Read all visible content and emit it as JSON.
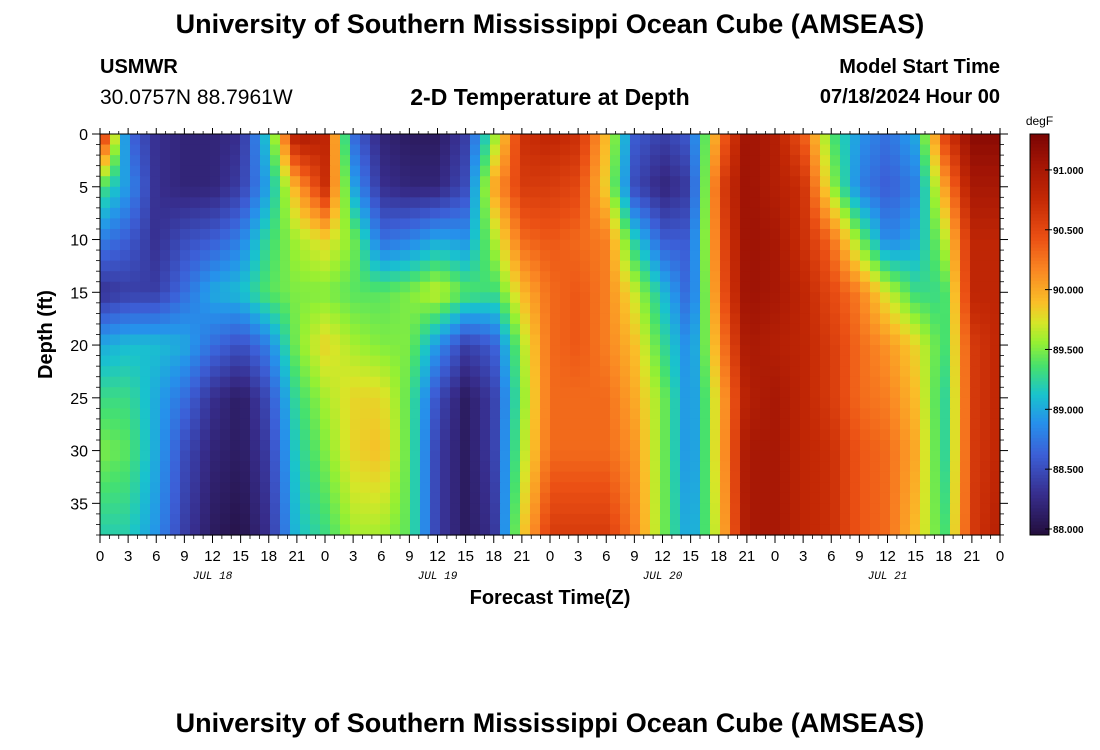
{
  "header": {
    "title": "University of Southern Mississippi Ocean Cube (AMSEAS)",
    "station_id": "USMWR",
    "coordinates": "30.0757N  88.7961W",
    "plot_title": "2-D Temperature at Depth",
    "model_start_label": "Model Start Time",
    "model_start_value": "07/18/2024 Hour 00"
  },
  "footer": {
    "title": "University of Southern Mississippi Ocean Cube (AMSEAS)"
  },
  "chart_data": {
    "type": "heatmap",
    "title": "2-D Temperature at Depth",
    "xlabel": "Forecast Time(Z)",
    "ylabel": "Depth (ft)",
    "x_hours_range": [
      0,
      96
    ],
    "x_ticks": [
      "0",
      "3",
      "6",
      "9",
      "12",
      "15",
      "18",
      "21",
      "0",
      "3",
      "6",
      "9",
      "12",
      "15",
      "18",
      "21",
      "0",
      "3",
      "6",
      "9",
      "12",
      "15",
      "18",
      "21",
      "0",
      "3",
      "6",
      "9",
      "12",
      "15",
      "18",
      "21",
      "0"
    ],
    "day_labels": [
      "JUL 18",
      "JUL 19",
      "JUL 20",
      "JUL 21"
    ],
    "y_range": [
      0,
      38
    ],
    "y_ticks": [
      "0",
      "5",
      "10",
      "15",
      "20",
      "25",
      "30",
      "35"
    ],
    "colorbar": {
      "unit": "degF",
      "range": [
        87.95,
        91.3
      ],
      "ticks": [
        "88.000",
        "88.500",
        "89.000",
        "89.500",
        "90.000",
        "90.500",
        "91.000"
      ]
    },
    "depths_ft": [
      0,
      5,
      10,
      15,
      20,
      25,
      30,
      38
    ],
    "times_h": [
      0,
      3,
      6,
      9,
      12,
      15,
      18,
      21,
      24,
      27,
      30,
      33,
      36,
      39,
      42,
      45,
      48,
      51,
      54,
      57,
      60,
      63,
      66,
      69,
      72,
      75,
      78,
      81,
      84,
      87,
      90,
      93,
      96
    ],
    "temperature_degF": [
      [
        90.9,
        88.7,
        88.3,
        88.2,
        88.2,
        88.3,
        89.2,
        91.0,
        90.8,
        88.7,
        88.2,
        88.1,
        88.1,
        88.4,
        89.5,
        90.7,
        90.8,
        90.7,
        89.9,
        88.6,
        88.4,
        88.6,
        90.2,
        91.1,
        90.9,
        90.4,
        89.4,
        88.9,
        88.7,
        89.0,
        90.5,
        91.2,
        91.2
      ],
      [
        89.4,
        88.9,
        88.3,
        88.2,
        88.2,
        88.4,
        89.0,
        90.0,
        90.7,
        89.0,
        88.3,
        88.2,
        88.2,
        88.5,
        90.0,
        90.6,
        90.6,
        90.5,
        89.8,
        88.5,
        88.2,
        88.4,
        90.5,
        91.1,
        90.9,
        90.7,
        89.6,
        88.8,
        88.6,
        88.8,
        90.0,
        91.0,
        91.0
      ],
      [
        88.8,
        88.6,
        88.3,
        88.5,
        88.6,
        88.8,
        89.3,
        89.6,
        89.8,
        89.5,
        88.7,
        88.8,
        89.0,
        88.9,
        89.6,
        90.3,
        90.4,
        90.3,
        90.2,
        89.2,
        88.6,
        88.6,
        90.4,
        91.1,
        91.0,
        90.7,
        90.3,
        89.5,
        88.8,
        89.0,
        89.6,
        90.8,
        90.8
      ],
      [
        88.3,
        88.4,
        88.4,
        88.7,
        89.0,
        89.1,
        89.4,
        89.5,
        89.5,
        89.4,
        89.4,
        89.5,
        89.7,
        89.4,
        89.3,
        89.9,
        90.3,
        90.4,
        90.2,
        89.7,
        89.1,
        88.6,
        90.3,
        91.1,
        91.0,
        90.8,
        90.5,
        90.2,
        89.7,
        89.3,
        89.3,
        90.8,
        90.8
      ],
      [
        89.0,
        89.1,
        89.1,
        89.0,
        88.7,
        88.5,
        88.8,
        89.5,
        89.8,
        89.6,
        89.5,
        89.5,
        88.9,
        88.4,
        88.6,
        89.6,
        90.3,
        90.4,
        90.2,
        89.9,
        89.3,
        88.8,
        90.1,
        91.0,
        90.9,
        90.8,
        90.6,
        90.3,
        90.1,
        89.8,
        89.3,
        90.6,
        90.8
      ],
      [
        89.3,
        89.3,
        89.0,
        88.7,
        88.3,
        88.1,
        88.5,
        89.3,
        89.6,
        89.8,
        89.8,
        89.4,
        88.5,
        88.1,
        88.4,
        89.5,
        90.3,
        90.3,
        90.3,
        90.0,
        89.5,
        88.8,
        89.9,
        90.9,
        91.0,
        90.8,
        90.6,
        90.3,
        90.2,
        89.9,
        89.2,
        90.6,
        90.8
      ],
      [
        89.5,
        89.4,
        89.0,
        88.5,
        88.2,
        88.1,
        88.4,
        89.2,
        89.5,
        89.8,
        89.9,
        89.4,
        88.4,
        88.1,
        88.4,
        89.6,
        90.3,
        90.3,
        90.3,
        90.1,
        89.5,
        88.8,
        89.9,
        91.0,
        91.0,
        90.8,
        90.7,
        90.4,
        90.3,
        90.0,
        89.2,
        90.6,
        90.8
      ],
      [
        89.2,
        89.2,
        88.9,
        88.4,
        88.1,
        88.0,
        88.3,
        89.1,
        89.3,
        89.6,
        89.6,
        89.4,
        88.4,
        88.1,
        88.3,
        89.8,
        90.6,
        90.6,
        90.6,
        90.2,
        89.5,
        88.9,
        89.8,
        91.0,
        91.0,
        90.8,
        90.7,
        90.4,
        90.3,
        89.9,
        89.3,
        90.6,
        90.9
      ]
    ]
  }
}
